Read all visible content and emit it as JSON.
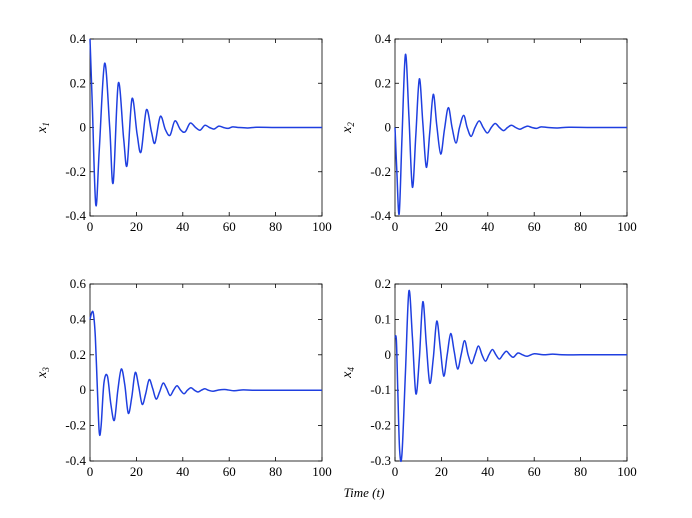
{
  "chart_data": [
    {
      "type": "line",
      "ylabel": "x",
      "ylabel_sub": "1",
      "xlim": [
        0,
        100
      ],
      "ylim": [
        -0.4,
        0.4
      ],
      "xticks": [
        "0",
        "20",
        "40",
        "60",
        "80",
        "100"
      ],
      "yticks": [
        "-0.4",
        "-0.2",
        "0",
        "0.2",
        "0.4"
      ],
      "grid": false,
      "series": [
        {
          "color": "#1f3fe0",
          "x": [
            0,
            1.0,
            2.5,
            4.0,
            6.3,
            8.5,
            10.0,
            12.2,
            14.5,
            16.0,
            18.1,
            20.3,
            22.0,
            24.3,
            26.5,
            28.0,
            30.3,
            32.5,
            34.5,
            36.6,
            39.0,
            41.0,
            43.2,
            45.5,
            47.5,
            49.5,
            51.5,
            53.5,
            55.5,
            57.5,
            59.5,
            61.5,
            64.0,
            68.0,
            72.0,
            80.0,
            90.0,
            100.0
          ],
          "y": [
            0.4,
            0.1,
            -0.35,
            -0.1,
            0.29,
            0.0,
            -0.25,
            0.2,
            -0.05,
            -0.17,
            0.13,
            -0.03,
            -0.11,
            0.08,
            -0.02,
            -0.07,
            0.05,
            -0.01,
            -0.035,
            0.03,
            -0.01,
            -0.02,
            0.02,
            0.0,
            -0.012,
            0.01,
            0.0,
            -0.007,
            0.006,
            0.0,
            -0.004,
            0.003,
            0.0,
            -0.002,
            0.001,
            0.0,
            0.0,
            0.0
          ]
        }
      ]
    },
    {
      "type": "line",
      "ylabel": "x",
      "ylabel_sub": "2",
      "xlim": [
        0,
        100
      ],
      "ylim": [
        -0.4,
        0.4
      ],
      "xticks": [
        "0",
        "20",
        "40",
        "60",
        "80",
        "100"
      ],
      "yticks": [
        "-0.4",
        "-0.2",
        "0",
        "0.2",
        "0.4"
      ],
      "grid": false,
      "series": [
        {
          "color": "#1f3fe0",
          "x": [
            0,
            0.8,
            1.8,
            3.0,
            4.5,
            6.0,
            7.5,
            9.0,
            10.5,
            12.0,
            13.5,
            15.0,
            16.5,
            18.0,
            19.7,
            21.3,
            23.0,
            24.6,
            26.3,
            27.8,
            29.6,
            31.1,
            32.8,
            34.5,
            36.3,
            38.0,
            39.8,
            41.5,
            43.2,
            45.0,
            46.8,
            48.5,
            50.2,
            52.0,
            53.8,
            55.5,
            57.2,
            59.0,
            61.0,
            63.0,
            66.0,
            70.0,
            75.0,
            85.0,
            100.0
          ],
          "y": [
            0.0,
            -0.2,
            -0.39,
            -0.05,
            0.33,
            0.05,
            -0.27,
            -0.03,
            0.22,
            0.02,
            -0.18,
            -0.02,
            0.15,
            0.01,
            -0.12,
            -0.01,
            0.09,
            0.0,
            -0.07,
            0.0,
            0.055,
            0.0,
            -0.04,
            0.0,
            0.03,
            0.0,
            -0.025,
            0.0,
            0.018,
            0.0,
            -0.014,
            0.0,
            0.01,
            0.0,
            -0.008,
            0.0,
            0.006,
            0.0,
            -0.004,
            0.003,
            0.0,
            -0.002,
            0.001,
            0.0,
            0.0
          ]
        }
      ]
    },
    {
      "type": "line",
      "ylabel": "x",
      "ylabel_sub": "3",
      "xlim": [
        0,
        100
      ],
      "ylim": [
        -0.4,
        0.6
      ],
      "xticks": [
        "0",
        "20",
        "40",
        "60",
        "80",
        "100"
      ],
      "yticks": [
        "-0.4",
        "-0.2",
        "0",
        "0.2",
        "0.4",
        "0.6"
      ],
      "grid": false,
      "series": [
        {
          "color": "#1f3fe0",
          "x": [
            0,
            0.8,
            1.5,
            2.3,
            3.2,
            4.0,
            4.8,
            6.0,
            7.5,
            9.0,
            10.5,
            12.0,
            13.5,
            15.0,
            16.5,
            18.0,
            19.5,
            21.0,
            22.5,
            24.0,
            25.5,
            27.0,
            28.5,
            30.0,
            31.5,
            33.0,
            34.5,
            36.0,
            37.5,
            39.0,
            40.5,
            42.0,
            43.5,
            45.0,
            46.5,
            48.0,
            49.5,
            51.0,
            53.0,
            55.0,
            58.0,
            62.0,
            66.0,
            70.0,
            80.0,
            90.0,
            100.0
          ],
          "y": [
            0.4,
            0.44,
            0.43,
            0.3,
            0.0,
            -0.24,
            -0.2,
            0.04,
            0.08,
            -0.08,
            -0.17,
            0.0,
            0.12,
            0.03,
            -0.13,
            -0.04,
            0.1,
            0.02,
            -0.08,
            -0.02,
            0.06,
            0.01,
            -0.05,
            -0.01,
            0.04,
            0.01,
            -0.03,
            0.0,
            0.025,
            0.0,
            -0.02,
            0.0,
            0.014,
            0.0,
            -0.01,
            0.0,
            0.008,
            0.0,
            -0.006,
            0.0,
            0.004,
            -0.003,
            0.002,
            0.0,
            0.0,
            0.0,
            0.0
          ]
        }
      ]
    },
    {
      "type": "line",
      "ylabel": "x",
      "ylabel_sub": "4",
      "xlim": [
        0,
        100
      ],
      "ylim": [
        -0.3,
        0.2
      ],
      "xticks": [
        "0",
        "20",
        "40",
        "60",
        "80",
        "100"
      ],
      "yticks": [
        "-0.3",
        "-0.2",
        "-0.1",
        "0",
        "0.1",
        "0.2"
      ],
      "grid": false,
      "series": [
        {
          "color": "#1f3fe0",
          "x": [
            0,
            0.6,
            1.2,
            2.0,
            3.0,
            4.5,
            6.0,
            7.5,
            9.0,
            10.5,
            12.0,
            13.5,
            15.0,
            16.5,
            18.0,
            19.5,
            21.0,
            22.5,
            24.0,
            25.5,
            27.0,
            28.5,
            30.0,
            31.5,
            33.0,
            34.5,
            36.0,
            37.5,
            39.0,
            40.5,
            42.0,
            43.5,
            45.0,
            46.5,
            48.0,
            49.5,
            51.0,
            53.0,
            55.0,
            57.0,
            60.0,
            64.0,
            68.0,
            72.0,
            80.0,
            90.0,
            100.0
          ],
          "y": [
            0.05,
            0.04,
            -0.1,
            -0.27,
            -0.28,
            -0.05,
            0.18,
            0.05,
            -0.11,
            -0.01,
            0.15,
            0.03,
            -0.08,
            -0.01,
            0.095,
            0.02,
            -0.06,
            0.0,
            0.06,
            0.01,
            -0.04,
            0.0,
            0.04,
            0.0,
            -0.025,
            0.0,
            0.025,
            0.0,
            -0.018,
            0.0,
            0.015,
            0.0,
            -0.012,
            0.0,
            0.01,
            0.0,
            -0.007,
            0.005,
            0.0,
            -0.004,
            0.003,
            0.0,
            0.002,
            0.0,
            0.0,
            0.0,
            0.0
          ]
        }
      ]
    }
  ],
  "figure": {
    "xlabel": "Time (t)"
  }
}
